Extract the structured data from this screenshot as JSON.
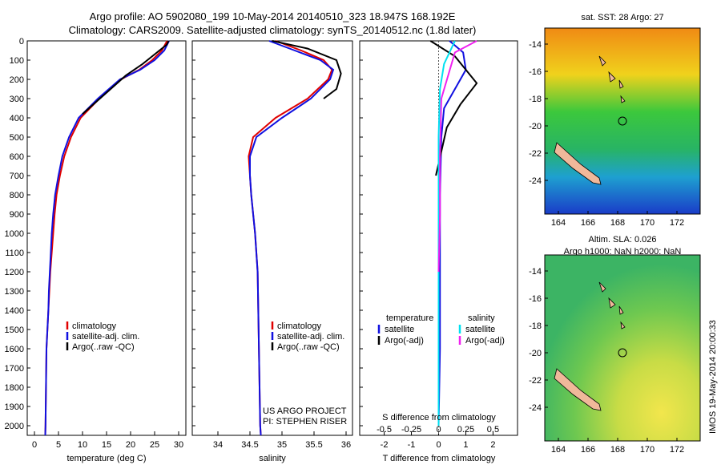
{
  "header": {
    "line1": "Argo profile: AO 5902080_199 10-May-2014 20140510_323 18.947S 168.192E",
    "line2": "Climatology: CARS2009. Satellite-adjusted climatology: synTS_20140512.nc (1.8d later)"
  },
  "colors": {
    "climatology": "#e00000",
    "satellite": "#1010e0",
    "argo": "#000000",
    "sat_salinity": "#00e0f0",
    "argo_salinity": "#f020f0"
  },
  "panels": {
    "temperature": {
      "xlabel": "temperature (deg C)",
      "legend": [
        "climatology",
        "satellite-adj. clim.",
        "Argo(..raw -QC)"
      ]
    },
    "salinity": {
      "xlabel": "salinity",
      "legend": [
        "climatology",
        "satellite-adj. clim.",
        "Argo(..raw -QC)"
      ],
      "note1": "US ARGO PROJECT",
      "note2": "PI: STEPHEN RISER"
    },
    "difference": {
      "xlabel_top": "S difference from climatology",
      "xlabel_bottom": "T difference from climatology",
      "legend_temp_head": "temperature",
      "legend_sal_head": "salinity",
      "legend_sat_t": "satellite",
      "legend_argo_t": "Argo(-adj)",
      "legend_sat_s": "satellite",
      "legend_argo_s": "Argo(-adj)"
    }
  },
  "maps": {
    "sst_title": "sat. SST: 28 Argo: 27",
    "sla_title1": "Altim. SLA: 0.026",
    "sla_title2": "Argo h1000: NaN h2000: NaN",
    "lat_ticks": [
      "-14",
      "-16",
      "-18",
      "-20",
      "-22",
      "-24"
    ],
    "lon_ticks": [
      "164",
      "166",
      "168",
      "170",
      "172"
    ],
    "side_label": "IMOS 19-May-2014 20:00:33"
  },
  "chart_data": [
    {
      "type": "line",
      "title": "",
      "xlabel": "temperature (deg C)",
      "ylabel": "",
      "xlim": [
        -1.5,
        31.5
      ],
      "ylim": [
        2050,
        0
      ],
      "x_ticks": [
        0,
        5,
        10,
        15,
        20,
        25,
        30
      ],
      "y_ticks": [
        0,
        100,
        200,
        300,
        400,
        500,
        600,
        700,
        800,
        900,
        1000,
        1100,
        1200,
        1300,
        1400,
        1500,
        1600,
        1700,
        1800,
        1900,
        2000
      ],
      "series": [
        {
          "name": "climatology",
          "color": "#e00000",
          "x": [
            27.6,
            26.5,
            24.5,
            21.8,
            18.0,
            13.5,
            9.6,
            7.6,
            6.2,
            5.3,
            4.6,
            4.2,
            3.9,
            3.6,
            3.3,
            3.1,
            2.9,
            2.7,
            2.5,
            2.4,
            2.3,
            2.25
          ],
          "y": [
            0,
            50,
            100,
            150,
            200,
            300,
            400,
            500,
            600,
            700,
            800,
            900,
            1000,
            1100,
            1200,
            1300,
            1400,
            1500,
            1600,
            1800,
            2000,
            2050
          ]
        },
        {
          "name": "satellite-adj. clim.",
          "color": "#1010e0",
          "x": [
            28.0,
            27.0,
            25.0,
            22.0,
            17.8,
            13.2,
            9.2,
            7.2,
            5.8,
            5.0,
            4.3,
            3.9,
            3.6,
            3.4,
            3.2,
            3.0,
            2.9,
            2.7,
            2.5,
            2.4,
            2.3,
            2.25
          ],
          "y": [
            0,
            50,
            100,
            150,
            200,
            300,
            400,
            500,
            600,
            700,
            800,
            900,
            1000,
            1100,
            1200,
            1300,
            1400,
            1500,
            1600,
            1800,
            2000,
            2050
          ]
        },
        {
          "name": "Argo(..raw -QC)",
          "color": "#000000",
          "x": [
            27.9,
            27.5,
            25.5,
            22.5,
            19.0,
            14.5,
            10.0
          ],
          "y": [
            0,
            20,
            60,
            120,
            180,
            280,
            380
          ]
        }
      ]
    },
    {
      "type": "line",
      "title": "",
      "xlabel": "salinity",
      "ylabel": "",
      "xlim": [
        33.6,
        36.1
      ],
      "ylim": [
        2050,
        0
      ],
      "x_ticks": [
        34,
        34.5,
        35,
        35.5,
        36
      ],
      "series": [
        {
          "name": "climatology",
          "color": "#e00000",
          "x": [
            34.9,
            35.3,
            35.65,
            35.78,
            35.72,
            35.4,
            34.9,
            34.55,
            34.48,
            34.5,
            34.52,
            34.55,
            34.58,
            34.6,
            34.62,
            34.63,
            34.64,
            34.65,
            34.66,
            34.67
          ],
          "y": [
            0,
            50,
            100,
            150,
            200,
            300,
            400,
            500,
            600,
            700,
            800,
            900,
            1000,
            1100,
            1200,
            1400,
            1600,
            1800,
            2000,
            2050
          ]
        },
        {
          "name": "satellite-adj. clim.",
          "color": "#1010e0",
          "x": [
            34.8,
            35.2,
            35.6,
            35.8,
            35.75,
            35.45,
            35.0,
            34.6,
            34.5,
            34.5,
            34.52,
            34.55,
            34.58,
            34.6,
            34.62,
            34.63,
            34.64,
            34.65,
            34.66,
            34.67
          ],
          "y": [
            0,
            50,
            100,
            150,
            200,
            300,
            400,
            500,
            600,
            700,
            800,
            900,
            1000,
            1100,
            1200,
            1400,
            1600,
            1800,
            2000,
            2050
          ]
        },
        {
          "name": "Argo(..raw -QC)",
          "color": "#000000",
          "x": [
            34.85,
            35.4,
            35.85,
            35.92,
            35.85,
            35.65
          ],
          "y": [
            0,
            40,
            100,
            170,
            250,
            300
          ]
        }
      ]
    },
    {
      "type": "line",
      "title": "",
      "xlabel": "T difference from climatology",
      "xlabel_top": "S difference from climatology",
      "xlim": [
        -2.9,
        2.9
      ],
      "ylim": [
        2050,
        0
      ],
      "x_ticks": [
        -2,
        -1,
        0,
        1,
        2
      ],
      "x_ticks_top": [
        -0.5,
        -0.25,
        0,
        0.25,
        0.5
      ],
      "series": [
        {
          "name": "temperature satellite",
          "color": "#1010e0",
          "x": [
            0.4,
            0.9,
            1.0,
            0.6,
            0.2,
            0.1,
            0.05,
            0.05,
            0.05,
            0.0
          ],
          "y": [
            0,
            60,
            150,
            250,
            350,
            500,
            800,
            1200,
            1600,
            2000
          ]
        },
        {
          "name": "temperature Argo(-adj)",
          "color": "#000000",
          "x": [
            -0.3,
            0.6,
            1.4,
            0.8,
            0.3,
            -0.1
          ],
          "y": [
            0,
            80,
            220,
            330,
            450,
            700
          ]
        },
        {
          "name": "salinity satellite",
          "color": "#00e0f0",
          "x": [
            0.6,
            0.2,
            0.05,
            0.0,
            0.0,
            0.0,
            0.0,
            0.0
          ],
          "y": [
            0,
            120,
            250,
            500,
            900,
            1300,
            1700,
            2000
          ]
        },
        {
          "name": "salinity Argo(-adj)",
          "color": "#f020f0",
          "x": [
            1.4,
            0.6,
            0.1,
            0.05,
            0.05,
            0.0
          ],
          "y": [
            0,
            60,
            300,
            600,
            900,
            1200
          ]
        }
      ]
    }
  ]
}
